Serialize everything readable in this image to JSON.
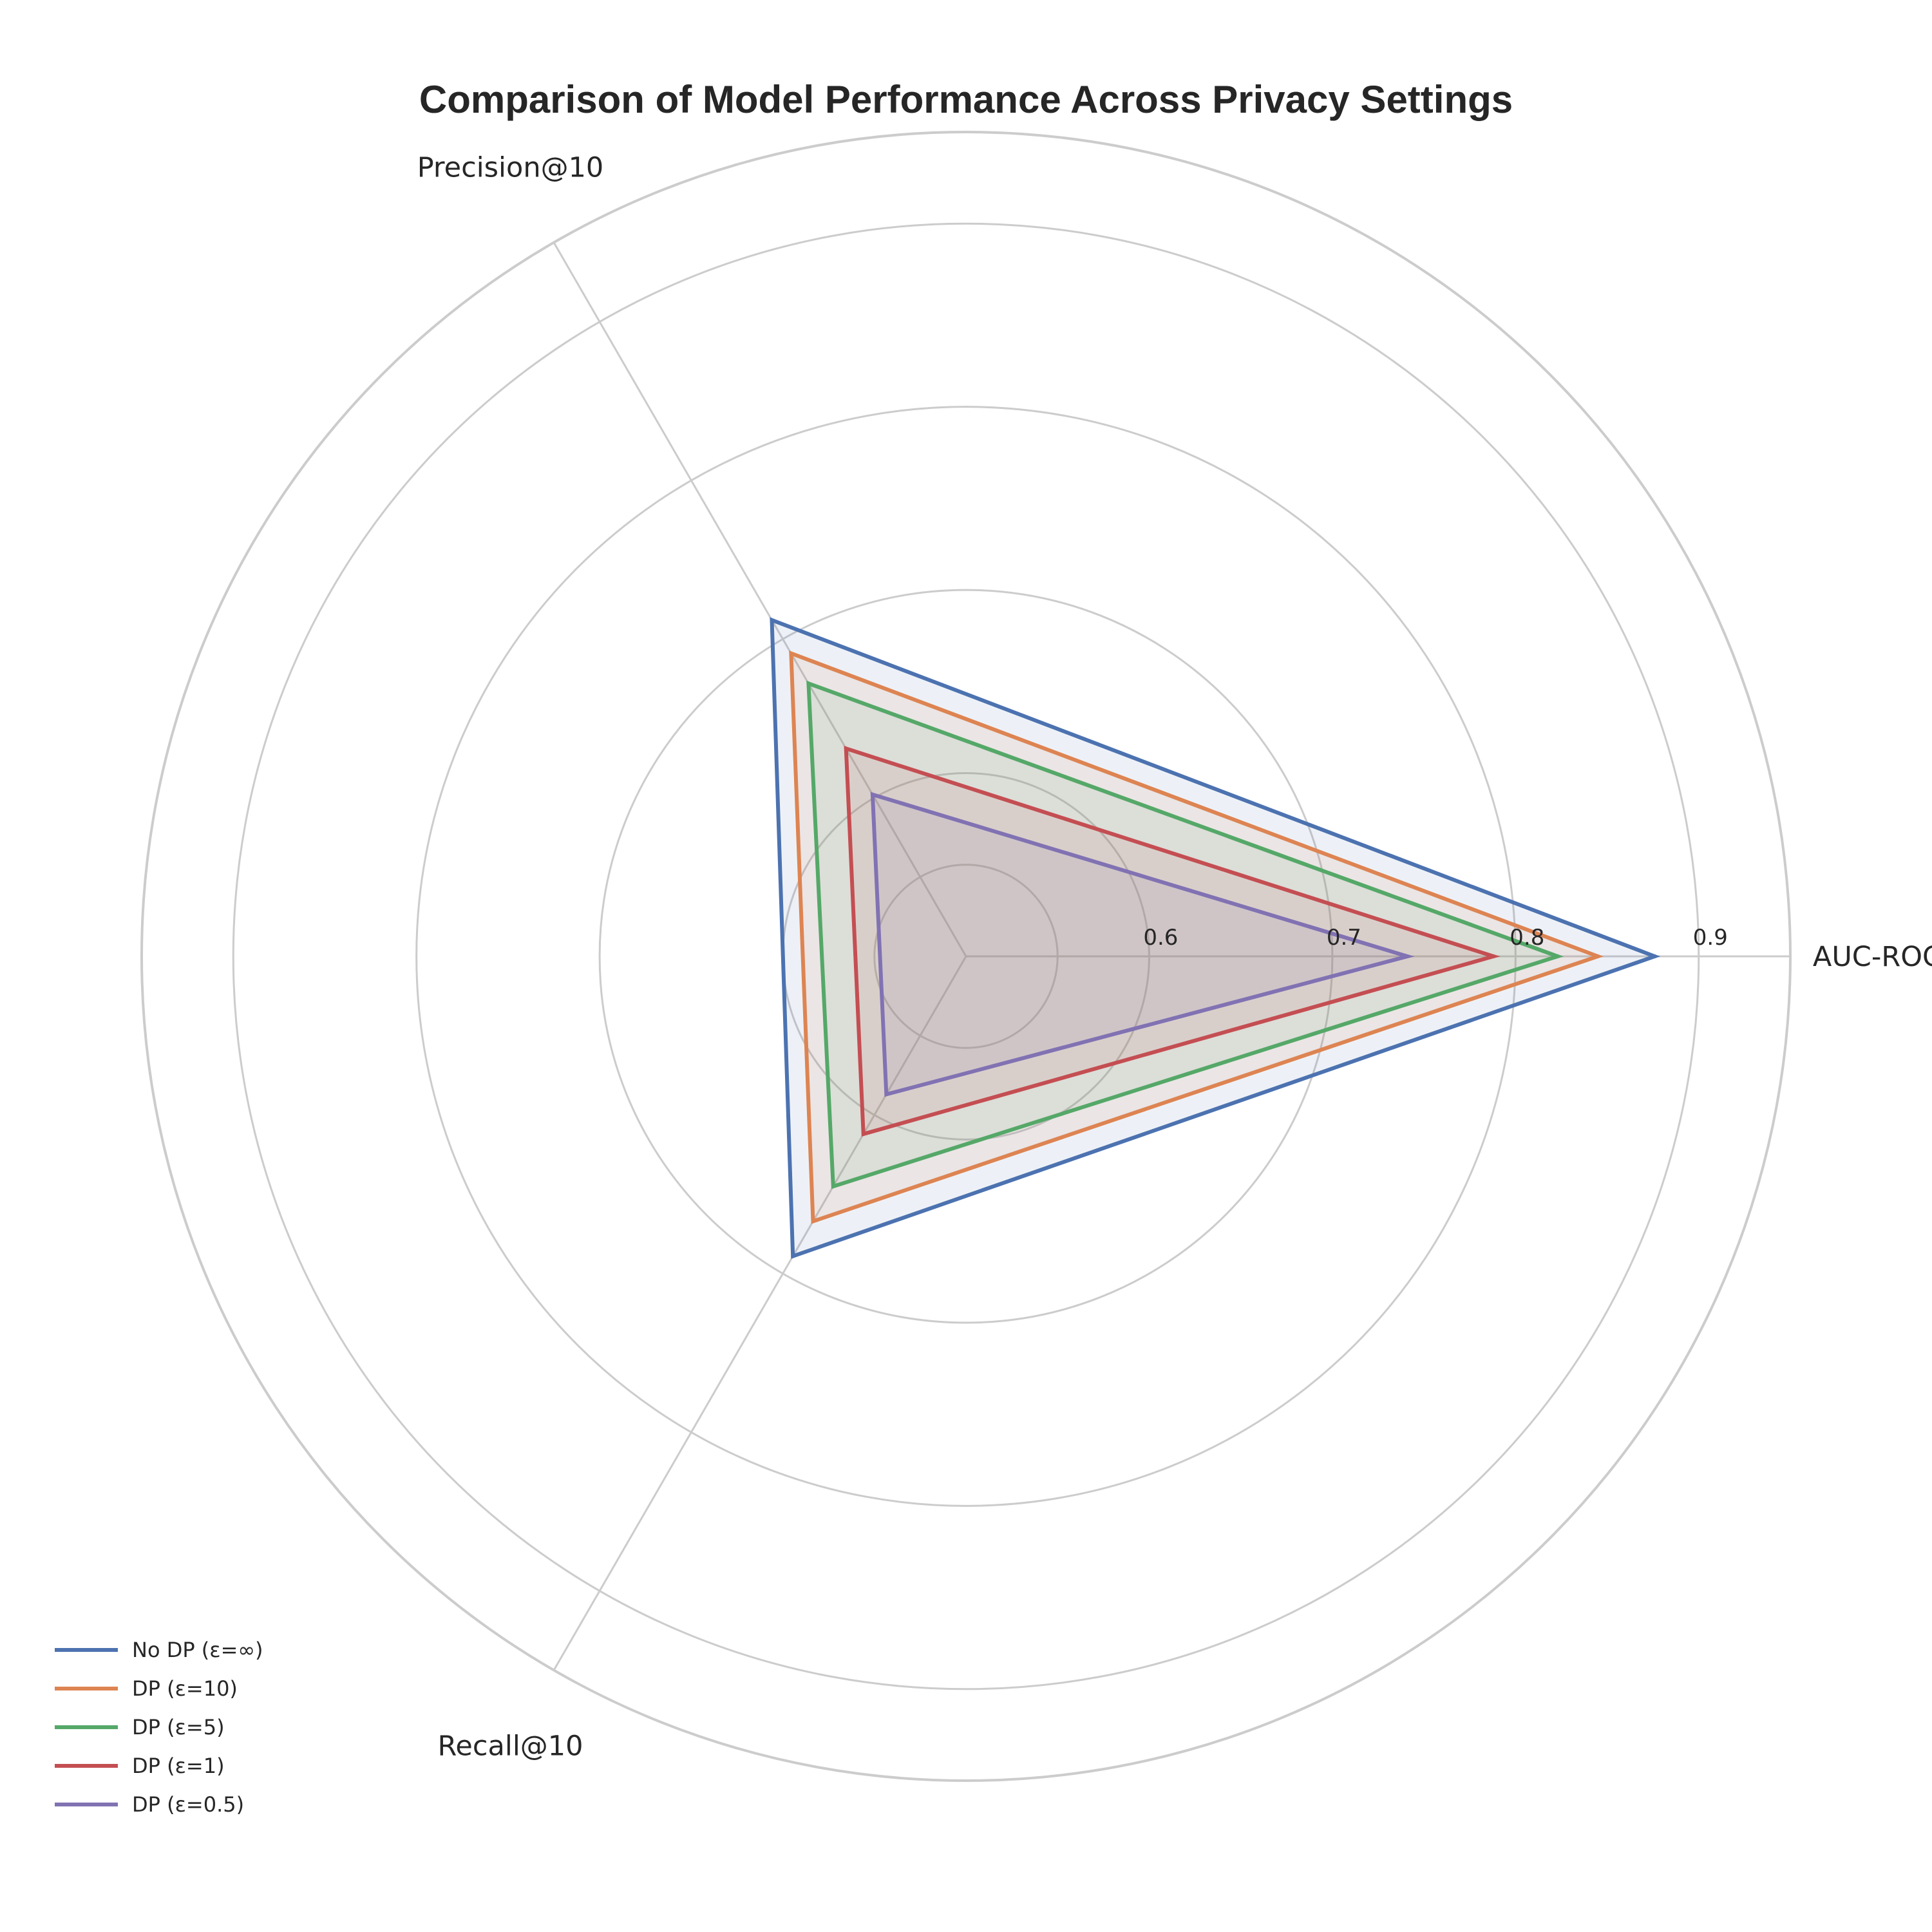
{
  "chart_data": {
    "type": "radar",
    "title": "Comparison of Model Performance Across Privacy Settings",
    "axes": [
      "AUC-ROC",
      "Precision@10",
      "Recall@10"
    ],
    "radial_range": [
      0.5,
      0.95
    ],
    "ticks": [
      0.6,
      0.7,
      0.8,
      0.9
    ],
    "tick_labels": [
      "0.6",
      "0.7",
      "0.8",
      "0.9"
    ],
    "grid": true,
    "legend_position": "lower-left",
    "series": [
      {
        "name": "No DP (ε=∞)",
        "color": "#4c72b0",
        "values": [
          0.876,
          0.712,
          0.689
        ]
      },
      {
        "name": "DP (ε=10)",
        "color": "#dd8452",
        "values": [
          0.845,
          0.691,
          0.667
        ]
      },
      {
        "name": "DP (ε=5)",
        "color": "#55a868",
        "values": [
          0.823,
          0.672,
          0.645
        ]
      },
      {
        "name": "DP (ε=1)",
        "color": "#c44e52",
        "values": [
          0.788,
          0.631,
          0.612
        ]
      },
      {
        "name": "DP (ε=0.5)",
        "color": "#8172b3",
        "values": [
          0.741,
          0.602,
          0.587
        ]
      }
    ]
  }
}
